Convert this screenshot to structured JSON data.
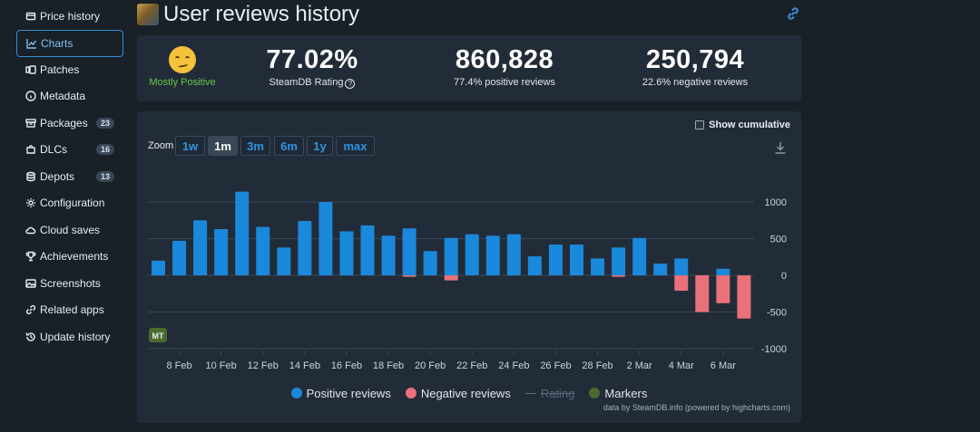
{
  "sidebar": {
    "items": [
      {
        "label": "Price history",
        "icon": "price-tag-icon"
      },
      {
        "label": "Charts",
        "icon": "chart-line-icon",
        "active": true
      },
      {
        "label": "Patches",
        "icon": "patches-icon"
      },
      {
        "label": "Metadata",
        "icon": "info-icon"
      },
      {
        "label": "Packages",
        "icon": "package-icon",
        "badge": "23"
      },
      {
        "label": "DLCs",
        "icon": "puzzle-icon",
        "badge": "16"
      },
      {
        "label": "Depots",
        "icon": "database-icon",
        "badge": "13"
      },
      {
        "label": "Configuration",
        "icon": "gear-icon"
      },
      {
        "label": "Cloud saves",
        "icon": "cloud-icon"
      },
      {
        "label": "Achievements",
        "icon": "trophy-icon"
      },
      {
        "label": "Screenshots",
        "icon": "image-icon"
      },
      {
        "label": "Related apps",
        "icon": "link-icon"
      },
      {
        "label": "Update history",
        "icon": "history-icon"
      }
    ]
  },
  "header": {
    "title": "User reviews history"
  },
  "stats": {
    "verdict": "Mostly Positive",
    "rating_value": "77.02%",
    "rating_label": "SteamDB Rating",
    "positive_value": "860,828",
    "positive_label": "77.4% positive reviews",
    "negative_value": "250,794",
    "negative_label": "22.6% negative reviews"
  },
  "chart_controls": {
    "show_cumulative": "Show cumulative",
    "zoom_label": "Zoom",
    "zoom_options": [
      "1w",
      "1m",
      "3m",
      "6m",
      "1y",
      "max"
    ],
    "zoom_selected": "1m"
  },
  "legend": {
    "positive": "Positive reviews",
    "negative": "Negative reviews",
    "rating": "Rating",
    "markers": "Markers"
  },
  "marker_label": "MT",
  "credits": "data by SteamDB.info (powered by highcharts.com)",
  "colors": {
    "positive": "#1a88db",
    "negative": "#e8717a",
    "markers": "#4a6a2e",
    "accent": "#2f95e0",
    "verdict": "#66c84a"
  },
  "chart_data": {
    "type": "bar",
    "x_tick_labels": [
      "8 Feb",
      "10 Feb",
      "12 Feb",
      "14 Feb",
      "16 Feb",
      "18 Feb",
      "20 Feb",
      "22 Feb",
      "24 Feb",
      "26 Feb",
      "28 Feb",
      "2 Mar",
      "4 Mar",
      "6 Mar"
    ],
    "y_tick_labels": [
      "1000",
      "500",
      "0",
      "-500",
      "-1000"
    ],
    "ylim": [
      -1000,
      1000
    ],
    "categories": [
      "7 Feb",
      "8 Feb",
      "9 Feb",
      "10 Feb",
      "11 Feb",
      "12 Feb",
      "13 Feb",
      "14 Feb",
      "15 Feb",
      "16 Feb",
      "17 Feb",
      "18 Feb",
      "19 Feb",
      "20 Feb",
      "21 Feb",
      "22 Feb",
      "23 Feb",
      "24 Feb",
      "25 Feb",
      "26 Feb",
      "27 Feb",
      "28 Feb",
      "1 Mar",
      "2 Mar",
      "3 Mar",
      "4 Mar",
      "5 Mar",
      "6 Mar",
      "7 Mar"
    ],
    "series": [
      {
        "name": "Positive reviews",
        "values": [
          200,
          470,
          750,
          630,
          1140,
          660,
          380,
          740,
          1000,
          600,
          680,
          540,
          640,
          330,
          510,
          560,
          540,
          560,
          260,
          420,
          420,
          230,
          380,
          510,
          160,
          230,
          0,
          90,
          0
        ]
      },
      {
        "name": "Negative reviews",
        "values": [
          0,
          0,
          0,
          0,
          0,
          0,
          0,
          0,
          0,
          0,
          0,
          0,
          -20,
          0,
          -70,
          0,
          0,
          0,
          0,
          0,
          0,
          0,
          -20,
          0,
          0,
          -210,
          -500,
          -380,
          -590
        ]
      }
    ],
    "grid": true
  }
}
